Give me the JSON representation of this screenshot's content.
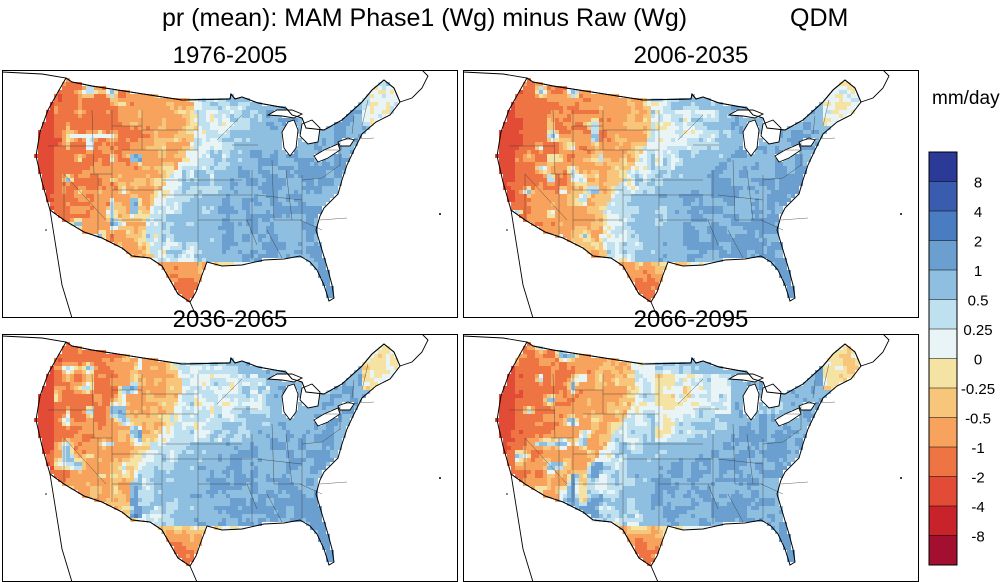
{
  "chart_data": [
    {
      "type": "heatmap",
      "title": "1976-2005",
      "region": "Contiguous United States",
      "colorbar_ref": "shared"
    },
    {
      "type": "heatmap",
      "title": "2006-2035",
      "region": "Contiguous United States",
      "colorbar_ref": "shared"
    },
    {
      "type": "heatmap",
      "title": "2036-2065",
      "region": "Contiguous United States",
      "colorbar_ref": "shared"
    },
    {
      "type": "heatmap",
      "title": "2066-2095",
      "region": "Contiguous United States",
      "colorbar_ref": "shared"
    }
  ],
  "figure": {
    "title": "pr (mean): MAM Phase1 (Wg) minus Raw (Wg)",
    "method": "QDM"
  },
  "colorbar": {
    "units": "mm/day",
    "tick_labels": [
      "8",
      "4",
      "2",
      "1",
      "0.5",
      "0.25",
      "0",
      "-0.25",
      "-0.5",
      "-1",
      "-2",
      "-4",
      "-8"
    ],
    "colors": [
      "#2b3a97",
      "#3a5cae",
      "#4a7cc1",
      "#6a9fcf",
      "#8fbfe0",
      "#bfe0ee",
      "#e8f4f5",
      "#f4e3a3",
      "#f8c67a",
      "#f7a25d",
      "#ef7443",
      "#e24b35",
      "#c8232b",
      "#a30f2f"
    ]
  }
}
